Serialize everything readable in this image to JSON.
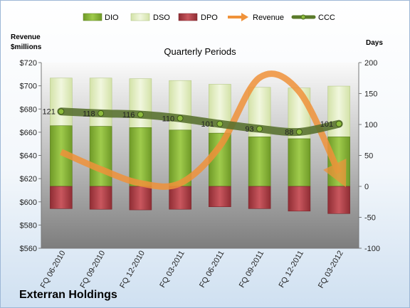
{
  "company": "Exterran Holdings",
  "chart_data": {
    "type": "bar",
    "title": "Quarterly Periods",
    "left_axis": {
      "title_line1": "Revenue",
      "title_line2": "$millions",
      "min": 560,
      "max": 720,
      "step": 20,
      "prefix": "$"
    },
    "right_axis": {
      "title": "Days",
      "min": -100,
      "max": 200,
      "step": 50
    },
    "categories": [
      "FQ 06-2010",
      "FQ 09-2010",
      "FQ 12-2010",
      "FQ 03-2011",
      "FQ 06-2011",
      "FQ 09-2011",
      "FQ 12-2011",
      "FQ 03-2012"
    ],
    "series": [
      {
        "name": "DIO",
        "type": "stacked-bar",
        "axis": "right",
        "color": "#8dbb3d",
        "values": [
          98,
          97,
          95,
          91,
          86,
          80,
          77,
          80
        ]
      },
      {
        "name": "DSO",
        "type": "stacked-bar",
        "axis": "right",
        "color": "#e4efc4",
        "values": [
          77,
          78,
          79,
          80,
          79,
          80,
          82,
          82
        ]
      },
      {
        "name": "DPO",
        "type": "stacked-bar-negative",
        "axis": "right",
        "color": "#b5434a",
        "values": [
          -36,
          -37,
          -38,
          -37,
          -33,
          -36,
          -40,
          -44
        ]
      },
      {
        "name": "Revenue",
        "type": "line-arrow",
        "axis": "left",
        "color": "#f0923a",
        "values": [
          643,
          628,
          616,
          616,
          648,
          707,
          695,
          625
        ]
      },
      {
        "name": "CCC",
        "type": "line-markers",
        "axis": "right",
        "color": "#5a7a2a",
        "values": [
          121,
          118,
          116,
          110,
          101,
          93,
          88,
          101
        ],
        "labels": [
          "121",
          "118",
          "116",
          "110",
          "101",
          "93",
          "88",
          "101"
        ]
      }
    ],
    "legend": "top",
    "grid": false
  }
}
